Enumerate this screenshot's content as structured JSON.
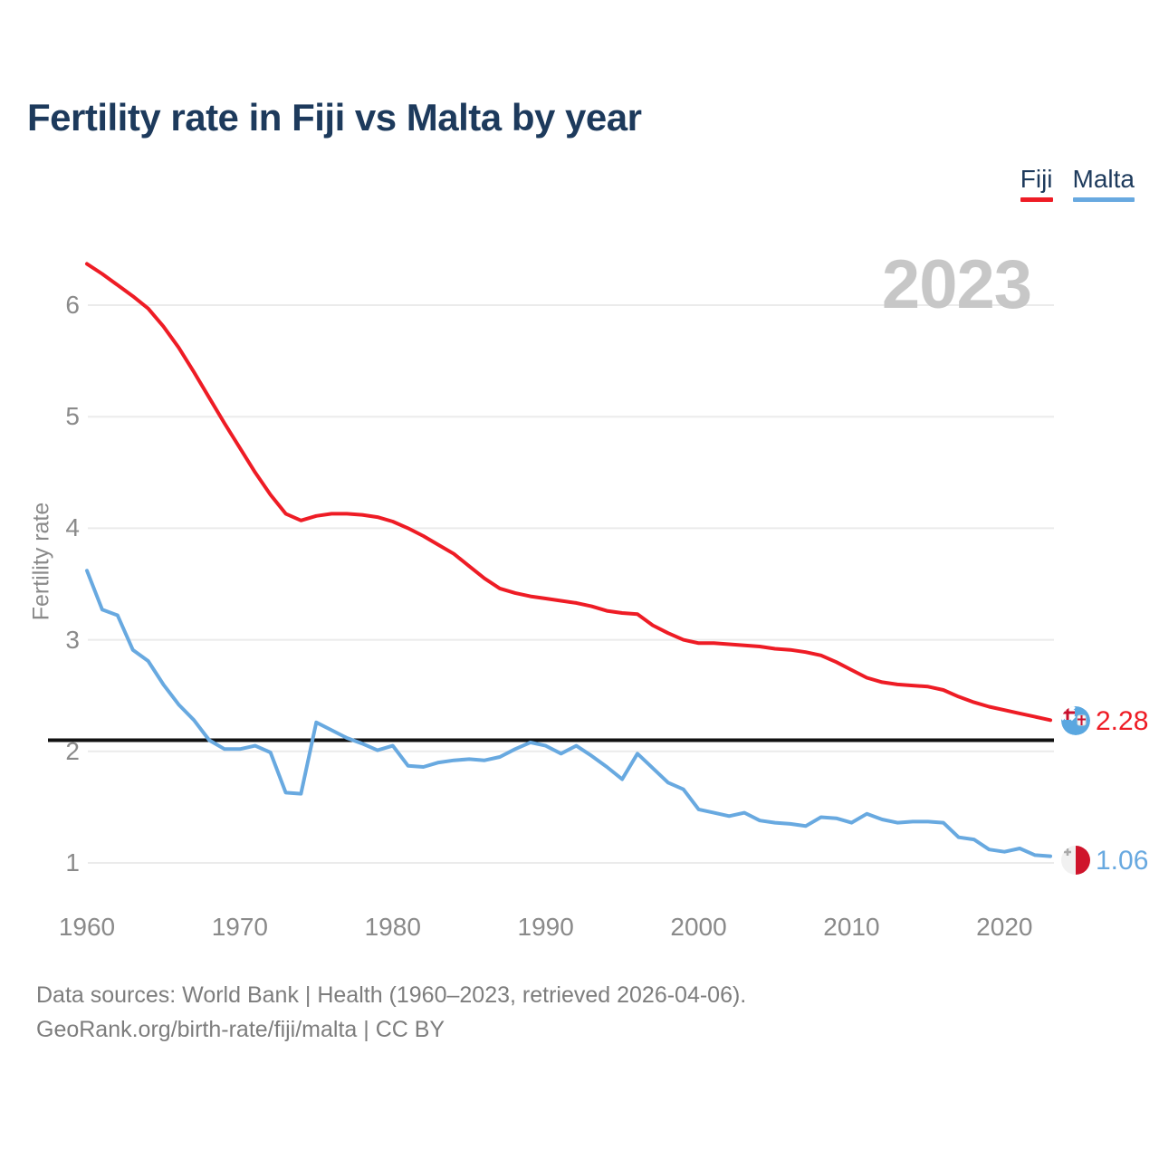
{
  "page": {
    "title": "Fertility rate in Fiji vs Malta by year"
  },
  "legend": {
    "items": [
      {
        "label": "Fiji",
        "color": "#ee1c25"
      },
      {
        "label": "Malta",
        "color": "#68a9e0"
      }
    ]
  },
  "watermark": "2023",
  "y_axis": {
    "label": "Fertility rate",
    "ticks": [
      1,
      2,
      3,
      4,
      5,
      6
    ]
  },
  "x_axis": {
    "ticks": [
      1960,
      1970,
      1980,
      1990,
      2000,
      2010,
      2020
    ]
  },
  "end_labels": {
    "fiji": {
      "value": "2.28",
      "color": "#ee1c25",
      "flag": "fiji-flag"
    },
    "malta": {
      "value": "1.06",
      "color": "#68a9e0",
      "flag": "malta-flag"
    }
  },
  "footer": {
    "line1": "Data sources: World Bank | Health (1960–2023, retrieved 2026-04-06).",
    "line2": "GeoRank.org/birth-rate/fiji/malta | CC BY"
  },
  "chart_data": {
    "type": "line",
    "title": "Fertility rate in Fiji vs Malta by year",
    "xlabel": "",
    "ylabel": "Fertility rate",
    "grid": "horizontal",
    "grid_color": "#ebebeb",
    "legend_position": "top-right",
    "ylim": [
      0.85,
      6.5
    ],
    "y_ticks": [
      1,
      2,
      3,
      4,
      5,
      6
    ],
    "reference_line": {
      "value": 2.1,
      "color": "#111111",
      "meaning": "replacement level"
    },
    "years": [
      1960,
      1961,
      1962,
      1963,
      1964,
      1965,
      1966,
      1967,
      1968,
      1969,
      1970,
      1971,
      1972,
      1973,
      1974,
      1975,
      1976,
      1977,
      1978,
      1979,
      1980,
      1981,
      1982,
      1983,
      1984,
      1985,
      1986,
      1987,
      1988,
      1989,
      1990,
      1991,
      1992,
      1993,
      1994,
      1995,
      1996,
      1997,
      1998,
      1999,
      2000,
      2001,
      2002,
      2003,
      2004,
      2005,
      2006,
      2007,
      2008,
      2009,
      2010,
      2011,
      2012,
      2013,
      2014,
      2015,
      2016,
      2017,
      2018,
      2019,
      2020,
      2021,
      2022,
      2023
    ],
    "series": [
      {
        "name": "Fiji",
        "color": "#ee1c25",
        "last_value": 2.28,
        "values": [
          6.37,
          6.28,
          6.18,
          6.08,
          5.97,
          5.81,
          5.62,
          5.4,
          5.17,
          4.94,
          4.72,
          4.5,
          4.3,
          4.13,
          4.07,
          4.11,
          4.13,
          4.13,
          4.12,
          4.1,
          4.06,
          4.0,
          3.93,
          3.85,
          3.77,
          3.66,
          3.55,
          3.46,
          3.42,
          3.39,
          3.37,
          3.35,
          3.33,
          3.3,
          3.26,
          3.24,
          3.23,
          3.13,
          3.06,
          3.0,
          2.97,
          2.97,
          2.96,
          2.95,
          2.94,
          2.92,
          2.91,
          2.89,
          2.86,
          2.8,
          2.73,
          2.66,
          2.62,
          2.6,
          2.59,
          2.58,
          2.55,
          2.49,
          2.44,
          2.4,
          2.37,
          2.34,
          2.31,
          2.28
        ]
      },
      {
        "name": "Malta",
        "color": "#68a9e0",
        "last_value": 1.06,
        "values": [
          3.62,
          3.27,
          3.22,
          2.91,
          2.81,
          2.6,
          2.42,
          2.28,
          2.1,
          2.02,
          2.02,
          2.05,
          1.99,
          1.63,
          1.62,
          2.26,
          2.19,
          2.12,
          2.07,
          2.01,
          2.05,
          1.87,
          1.86,
          1.9,
          1.92,
          1.93,
          1.92,
          1.95,
          2.02,
          2.08,
          2.05,
          1.98,
          2.05,
          1.96,
          1.86,
          1.75,
          1.98,
          1.85,
          1.72,
          1.66,
          1.48,
          1.45,
          1.42,
          1.45,
          1.38,
          1.36,
          1.35,
          1.33,
          1.41,
          1.4,
          1.36,
          1.44,
          1.39,
          1.36,
          1.37,
          1.37,
          1.36,
          1.23,
          1.21,
          1.12,
          1.1,
          1.13,
          1.07,
          1.06
        ]
      }
    ]
  }
}
